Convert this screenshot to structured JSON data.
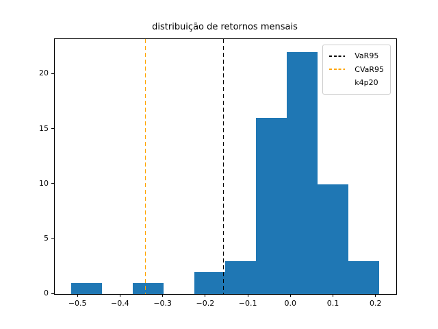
{
  "figure": {
    "background": "#ffffff",
    "spine_color": "#000000"
  },
  "chart_data": {
    "type": "bar",
    "subtype": "histogram",
    "title": "distribuição de retornos mensais",
    "xlabel": "",
    "ylabel": "",
    "bar_color": "#1f77b4",
    "bin_edges": [
      -0.5172,
      -0.4448,
      -0.3723,
      -0.2999,
      -0.2274,
      -0.155,
      -0.0825,
      -0.0101,
      0.0623,
      0.1348,
      0.2072
    ],
    "counts": [
      1,
      0,
      1,
      0,
      2,
      3,
      16,
      22,
      10,
      3
    ],
    "xlim": [
      -0.555,
      0.247
    ],
    "ylim": [
      0,
      23.2
    ],
    "grid": false,
    "xticks": {
      "values": [
        -0.5,
        -0.4,
        -0.3,
        -0.2,
        -0.1,
        0.0,
        0.1,
        0.2
      ],
      "labels": [
        "−0.5",
        "−0.4",
        "−0.3",
        "−0.2",
        "−0.1",
        "0.0",
        "0.1",
        "0.2"
      ]
    },
    "yticks": {
      "values": [
        0,
        5,
        10,
        15,
        20
      ],
      "labels": [
        "0",
        "5",
        "10",
        "15",
        "20"
      ]
    },
    "vlines": [
      {
        "name": "var95-line",
        "x": -0.159,
        "color": "#000000",
        "style": "dashed",
        "label": "VaR95"
      },
      {
        "name": "cvar95-line",
        "x": -0.342,
        "color": "#ffa500",
        "style": "dashed",
        "label": "CVaR95"
      }
    ],
    "legend": {
      "position": "upper right",
      "entries": [
        {
          "label": "VaR95",
          "line_color": "#000000",
          "line_style": "dashed"
        },
        {
          "label": "CVaR95",
          "line_color": "#ffa500",
          "line_style": "dashed"
        },
        {
          "label": "k4p20",
          "line_color": null,
          "line_style": "none"
        }
      ]
    }
  }
}
